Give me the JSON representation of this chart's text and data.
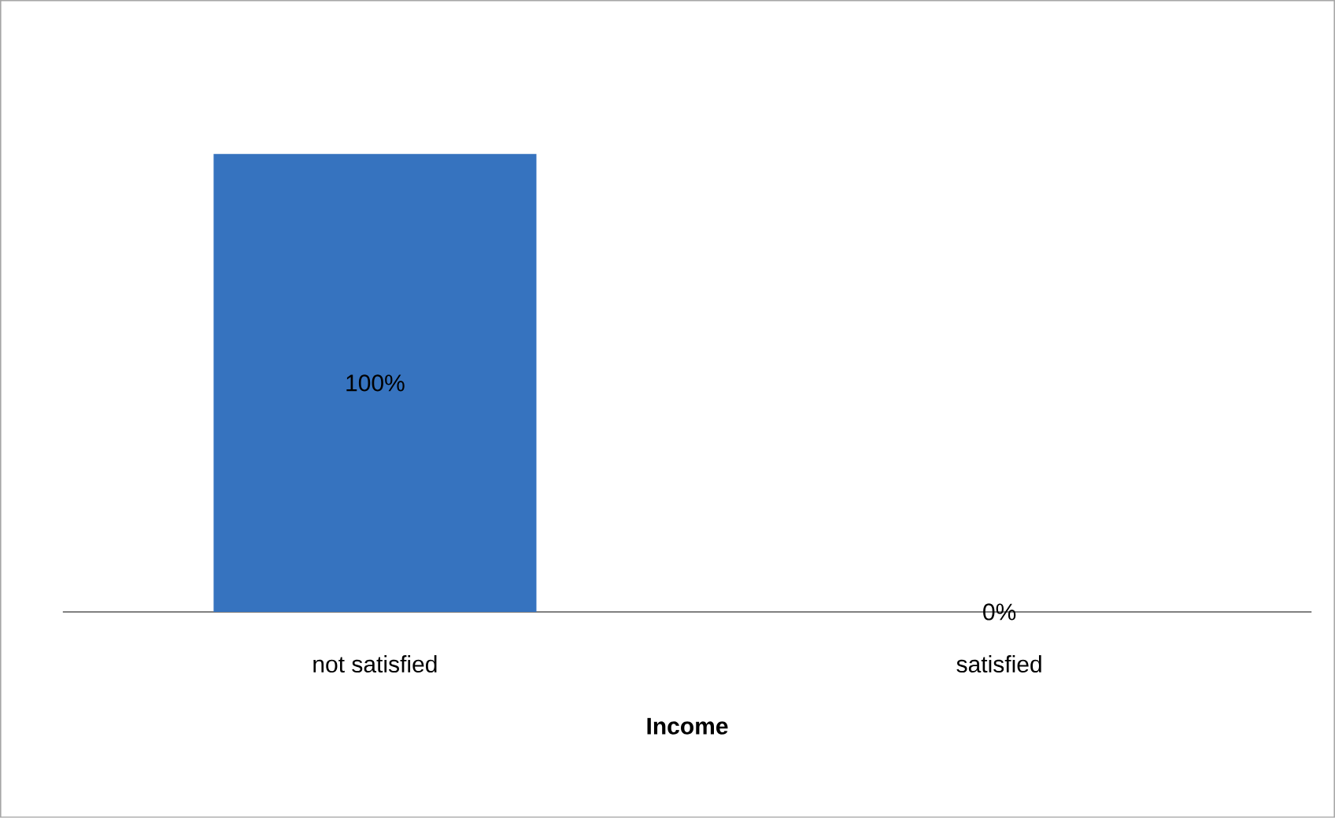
{
  "chart_data": {
    "type": "bar",
    "xlabel": "Income",
    "categories": [
      "not satisfied",
      "satisfied"
    ],
    "values": [
      100,
      0
    ],
    "value_labels": [
      "100%",
      "0%"
    ],
    "color": "#3673bf"
  }
}
